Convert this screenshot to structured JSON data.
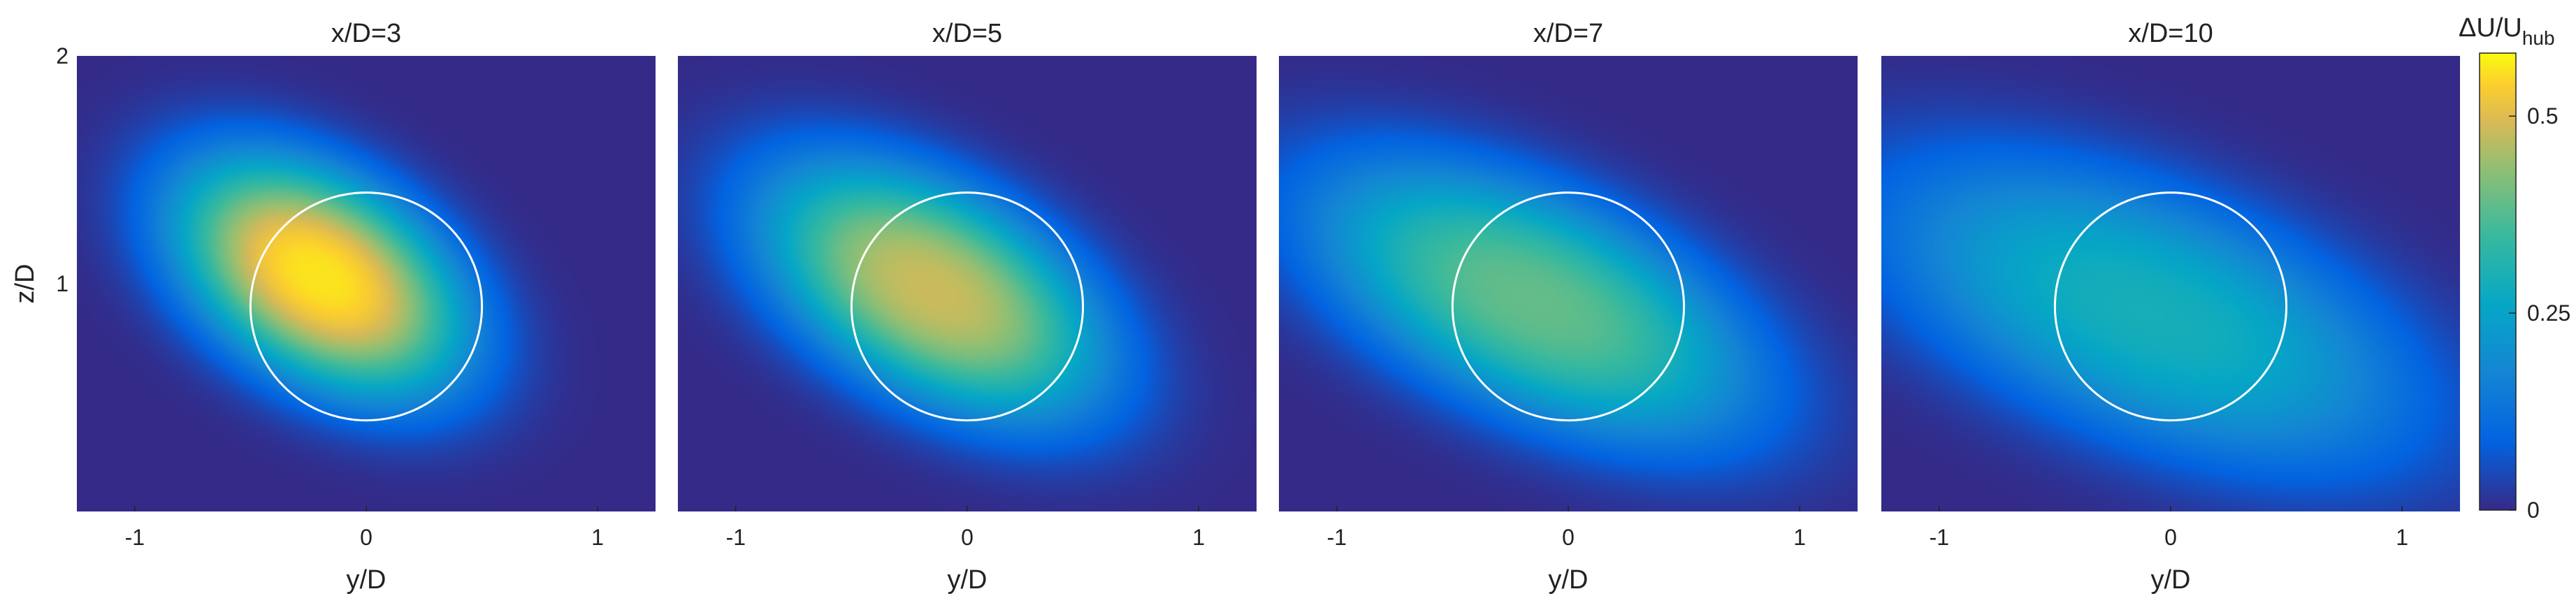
{
  "chart_data": {
    "type": "heatmap",
    "colorscale": "parula",
    "colorbar": {
      "label_main": "ΔU/U",
      "label_sub": "hub",
      "range": [
        0,
        0.58
      ],
      "ticks": [
        0,
        0.25,
        0.5
      ],
      "tick_labels": [
        "0",
        "0.25",
        "0.5"
      ]
    },
    "panels": [
      {
        "title": "x/D=3",
        "xlabel": "y/D",
        "ylabel": "z/D",
        "peak": 0.56,
        "center": [
          -0.2,
          1.03
        ],
        "sigma_major": 0.55,
        "sigma_minor": 0.34,
        "angle_deg": -33
      },
      {
        "title": "x/D=5",
        "xlabel": "y/D",
        "ylabel": "",
        "peak": 0.48,
        "center": [
          -0.15,
          0.97
        ],
        "sigma_major": 0.64,
        "sigma_minor": 0.35,
        "angle_deg": -30
      },
      {
        "title": "x/D=7",
        "xlabel": "y/D",
        "ylabel": "",
        "peak": 0.39,
        "center": [
          -0.15,
          0.92
        ],
        "sigma_major": 0.8,
        "sigma_minor": 0.37,
        "angle_deg": -25
      },
      {
        "title": "x/D=10",
        "xlabel": "y/D",
        "ylabel": "",
        "peak": 0.29,
        "center": [
          -0.1,
          0.87
        ],
        "sigma_major": 0.95,
        "sigma_minor": 0.42,
        "angle_deg": -22
      }
    ],
    "xlim": [
      -1.25,
      1.25
    ],
    "ylim": [
      0,
      2
    ],
    "xticks": [
      -1,
      0,
      1
    ],
    "xtick_labels": [
      "-1",
      "0",
      "1"
    ],
    "yticks": [
      1,
      2
    ],
    "ytick_labels": [
      "1",
      "2"
    ],
    "rotor": {
      "center": [
        0,
        0.9
      ],
      "diameter": 1
    }
  }
}
